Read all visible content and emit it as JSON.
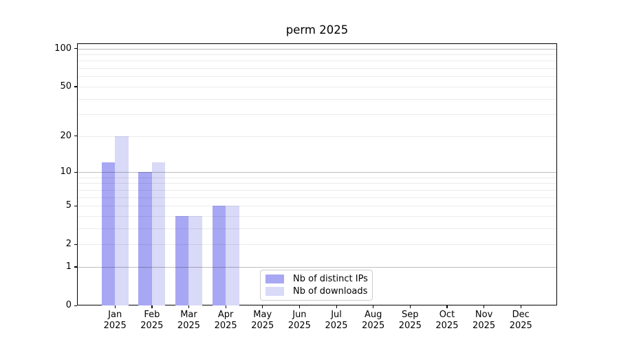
{
  "chart_data": {
    "type": "bar",
    "title": "perm 2025",
    "categories": [
      "Jan",
      "Feb",
      "Mar",
      "Apr",
      "May",
      "Jun",
      "Jul",
      "Aug",
      "Sep",
      "Oct",
      "Nov",
      "Dec"
    ],
    "category_year": "2025",
    "series": [
      {
        "name": "Nb of distinct IPs",
        "color": "#a7a7f3",
        "values": [
          12,
          10,
          4,
          5,
          0,
          0,
          0,
          0,
          0,
          0,
          0,
          0
        ]
      },
      {
        "name": "Nb of downloads",
        "color": "#d9d9f8",
        "values": [
          20,
          12,
          4,
          5,
          0,
          0,
          0,
          0,
          0,
          0,
          0,
          0
        ]
      }
    ],
    "yscale": "log1p",
    "ylim": [
      0,
      110
    ],
    "yticks": [
      0,
      1,
      2,
      5,
      10,
      20,
      50,
      100
    ],
    "major_gridlines": [
      1,
      10,
      100
    ],
    "minor_gridlines": [
      2,
      3,
      4,
      5,
      6,
      7,
      8,
      9,
      20,
      30,
      40,
      50,
      60,
      70,
      80,
      90
    ],
    "grid": true,
    "legend_position": "lower center",
    "background_color": "#ffffff",
    "spine_color": "#000000"
  }
}
